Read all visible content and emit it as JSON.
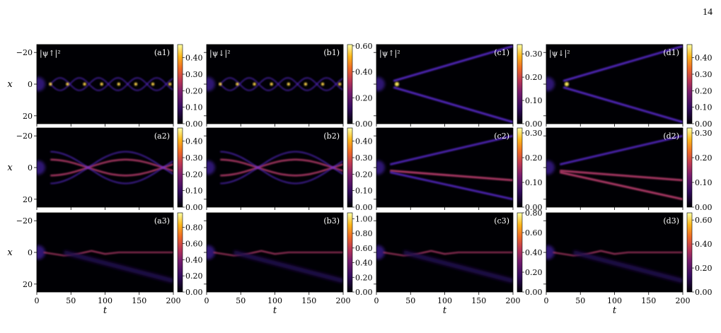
{
  "page_number": "14",
  "chart_data": [
    {
      "type": "heatmap",
      "panel": "a1",
      "colorbar_label": "|ψ↑|²",
      "colorbar_ticks": [
        "0.00",
        "0.10",
        "0.20",
        "0.30",
        "0.40"
      ],
      "colorbar_max": 0.48,
      "colormap": "inferno",
      "x": [
        0,
        200
      ],
      "y": [
        -25,
        25
      ],
      "xticks": [
        "0",
        "50",
        "100",
        "150",
        "200"
      ],
      "yticks": [
        "−20",
        "0",
        "20"
      ],
      "ylabel": "x",
      "xlabel": "t",
      "features": "breathing bright-soliton train along x=0"
    },
    {
      "type": "heatmap",
      "panel": "b1",
      "colorbar_label": "|ψ↓|²",
      "colorbar_ticks": [
        "0.00",
        "0.20",
        "0.40",
        "0.60"
      ],
      "colorbar_max": 0.61,
      "colormap": "inferno",
      "x": [
        0,
        200
      ],
      "y": [
        -25,
        25
      ],
      "xticks": [
        "0",
        "50",
        "100",
        "150",
        "200"
      ],
      "yticks": [
        "−20",
        "0",
        "20"
      ]
    },
    {
      "type": "heatmap",
      "panel": "c1",
      "colorbar_label": "|ψ↑|²",
      "colorbar_ticks": [
        "0.00",
        "0.10",
        "0.20",
        "0.30"
      ],
      "colorbar_max": 0.34,
      "colormap": "inferno",
      "x": [
        0,
        200
      ],
      "y": [
        -25,
        25
      ],
      "features": "central soliton with two outgoing rays"
    },
    {
      "type": "heatmap",
      "panel": "d1",
      "colorbar_label": "|ψ↓|²",
      "colorbar_ticks": [
        "0.00",
        "0.10",
        "0.20",
        "0.30",
        "0.40"
      ],
      "colorbar_max": 0.48,
      "colormap": "inferno",
      "x": [
        0,
        200
      ],
      "y": [
        -25,
        25
      ]
    },
    {
      "type": "heatmap",
      "panel": "a2",
      "colorbar_ticks": [
        "0.00",
        "0.10",
        "0.20",
        "0.30",
        "0.40"
      ],
      "colorbar_max": 0.48,
      "colormap": "inferno",
      "x": [
        0,
        200
      ],
      "y": [
        -25,
        25
      ]
    },
    {
      "type": "heatmap",
      "panel": "b2",
      "colorbar_ticks": [
        "0.00",
        "0.10",
        "0.20",
        "0.30",
        "0.40"
      ],
      "colorbar_max": 0.48,
      "colormap": "inferno",
      "x": [
        0,
        200
      ],
      "y": [
        -25,
        25
      ]
    },
    {
      "type": "heatmap",
      "panel": "c2",
      "colorbar_ticks": [
        "0.00",
        "0.10",
        "0.20",
        "0.30"
      ],
      "colorbar_max": 0.32,
      "colormap": "inferno",
      "x": [
        0,
        200
      ],
      "y": [
        -25,
        25
      ]
    },
    {
      "type": "heatmap",
      "panel": "d2",
      "colorbar_ticks": [
        "0.00",
        "0.10",
        "0.20",
        "0.30"
      ],
      "colorbar_max": 0.32,
      "colormap": "inferno",
      "x": [
        0,
        200
      ],
      "y": [
        -25,
        25
      ]
    },
    {
      "type": "heatmap",
      "panel": "a3",
      "colorbar_ticks": [
        "0.00",
        "0.20",
        "0.40",
        "0.60",
        "0.80"
      ],
      "colorbar_max": 0.98,
      "colormap": "inferno",
      "x": [
        0,
        200
      ],
      "y": [
        -25,
        25
      ]
    },
    {
      "type": "heatmap",
      "panel": "b3",
      "colorbar_ticks": [
        "0.00",
        "0.20",
        "0.40",
        "0.60",
        "0.80",
        "1.00"
      ],
      "colorbar_max": 1.08,
      "colormap": "inferno",
      "x": [
        0,
        200
      ],
      "y": [
        -25,
        25
      ]
    },
    {
      "type": "heatmap",
      "panel": "c3",
      "colorbar_ticks": [
        "0.00",
        "0.20",
        "0.40",
        "0.60",
        "0.80"
      ],
      "colorbar_max": 0.8,
      "colormap": "inferno",
      "x": [
        0,
        200
      ],
      "y": [
        -25,
        25
      ]
    },
    {
      "type": "heatmap",
      "panel": "d3",
      "colorbar_ticks": [
        "0.00",
        "0.20",
        "0.40",
        "0.60"
      ],
      "colorbar_max": 0.66,
      "colormap": "inferno",
      "x": [
        0,
        200
      ],
      "y": [
        -25,
        25
      ]
    }
  ],
  "axes": {
    "xlabel": "t",
    "ylabel": "x",
    "xticks": [
      "0",
      "50",
      "100",
      "150",
      "200"
    ],
    "yticks": [
      "−20",
      "0",
      "20"
    ]
  },
  "panel_titles": [
    "(a1)",
    "(b1)",
    "(c1)",
    "(d1)",
    "(a2)",
    "(b2)",
    "(c2)",
    "(d2)",
    "(a3)",
    "(b3)",
    "(c3)",
    "(d3)"
  ],
  "corner_labels": [
    "|ψ↑|²",
    "|ψ↓|²",
    "|ψ↑|²",
    "|ψ↓|²"
  ],
  "colors": {
    "background": "#000004",
    "cmap_low": "#000004",
    "cmap_mid": "#b63679",
    "cmap_high": "#fcffa4"
  }
}
